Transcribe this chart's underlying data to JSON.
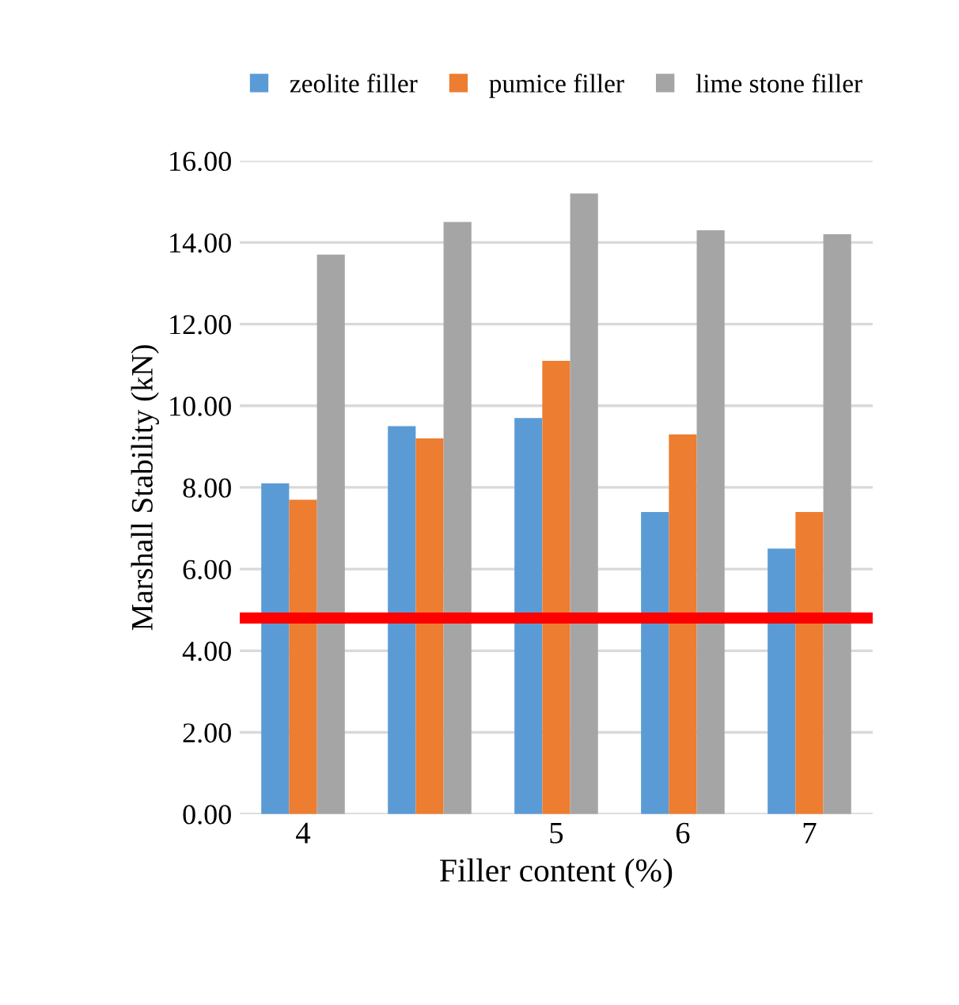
{
  "chart_data": {
    "type": "bar",
    "xlabel": "Filler content (%)",
    "ylabel": "Marshall Stability (kN)",
    "categories": [
      "4",
      null,
      "5",
      "6",
      "7"
    ],
    "series": [
      {
        "name": "zeolite filler",
        "color": "#5b9bd5",
        "values": [
          8.1,
          9.5,
          9.7,
          7.4,
          6.5
        ]
      },
      {
        "name": "pumice filler",
        "color": "#ed7d31",
        "values": [
          7.7,
          9.2,
          11.1,
          9.3,
          7.4
        ]
      },
      {
        "name": "lime stone filler",
        "color": "#a5a5a5",
        "values": [
          13.7,
          14.5,
          15.2,
          14.3,
          14.2
        ]
      }
    ],
    "ylim": [
      0,
      16
    ],
    "yticks": [
      {
        "value": 0,
        "label": "0.00"
      },
      {
        "value": 2,
        "label": "2.00"
      },
      {
        "value": 4,
        "label": "4.00"
      },
      {
        "value": 6,
        "label": "6.00"
      },
      {
        "value": 8,
        "label": "8.00"
      },
      {
        "value": 10,
        "label": "10.00"
      },
      {
        "value": 12,
        "label": "12.00"
      },
      {
        "value": 14,
        "label": "14.00"
      },
      {
        "value": 16,
        "label": "16.00"
      }
    ],
    "ref_lines": [
      {
        "axis": "y",
        "value": 4.8,
        "color": "#ff0000",
        "line_style": "solid"
      }
    ],
    "grid": "y",
    "legend": "top"
  }
}
